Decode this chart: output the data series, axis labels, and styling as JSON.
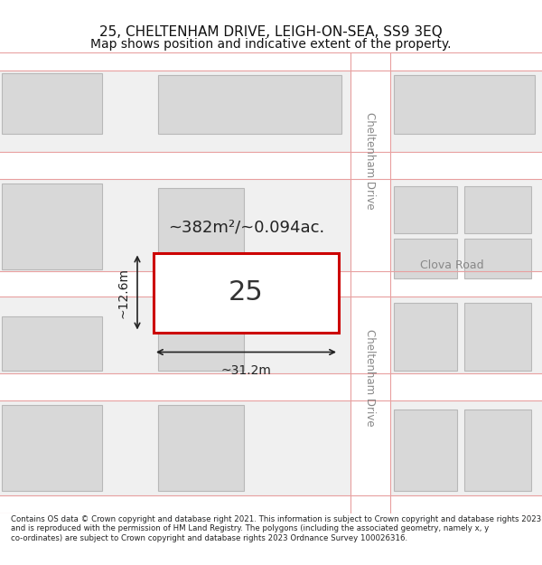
{
  "title": "25, CHELTENHAM DRIVE, LEIGH-ON-SEA, SS9 3EQ",
  "subtitle": "Map shows position and indicative extent of the property.",
  "footer": "Contains OS data © Crown copyright and database right 2021. This information is subject to Crown copyright and database rights 2023 and is reproduced with the permission of HM Land Registry. The polygons (including the associated geometry, namely x, y co-ordinates) are subject to Crown copyright and database rights 2023 Ordnance Survey 100026316.",
  "bg_color": "#f0f0f0",
  "map_bg": "#f5f5f5",
  "road_color": "#ffffff",
  "road_line_color": "#e8a0a0",
  "building_fill": "#d8d8d8",
  "building_edge": "#c0c0c0",
  "highlight_fill": "#ffffff",
  "highlight_edge": "#cc0000",
  "dim_line_color": "#222222",
  "area_text": "~382m²/~0.094ac.",
  "number_text": "25",
  "width_label": "~31.2m",
  "height_label": "~12.6m",
  "road_label_1": "Cheltenham Drive",
  "road_label_2": "Cheltenham Drive",
  "road_label_3": "Clova Road"
}
